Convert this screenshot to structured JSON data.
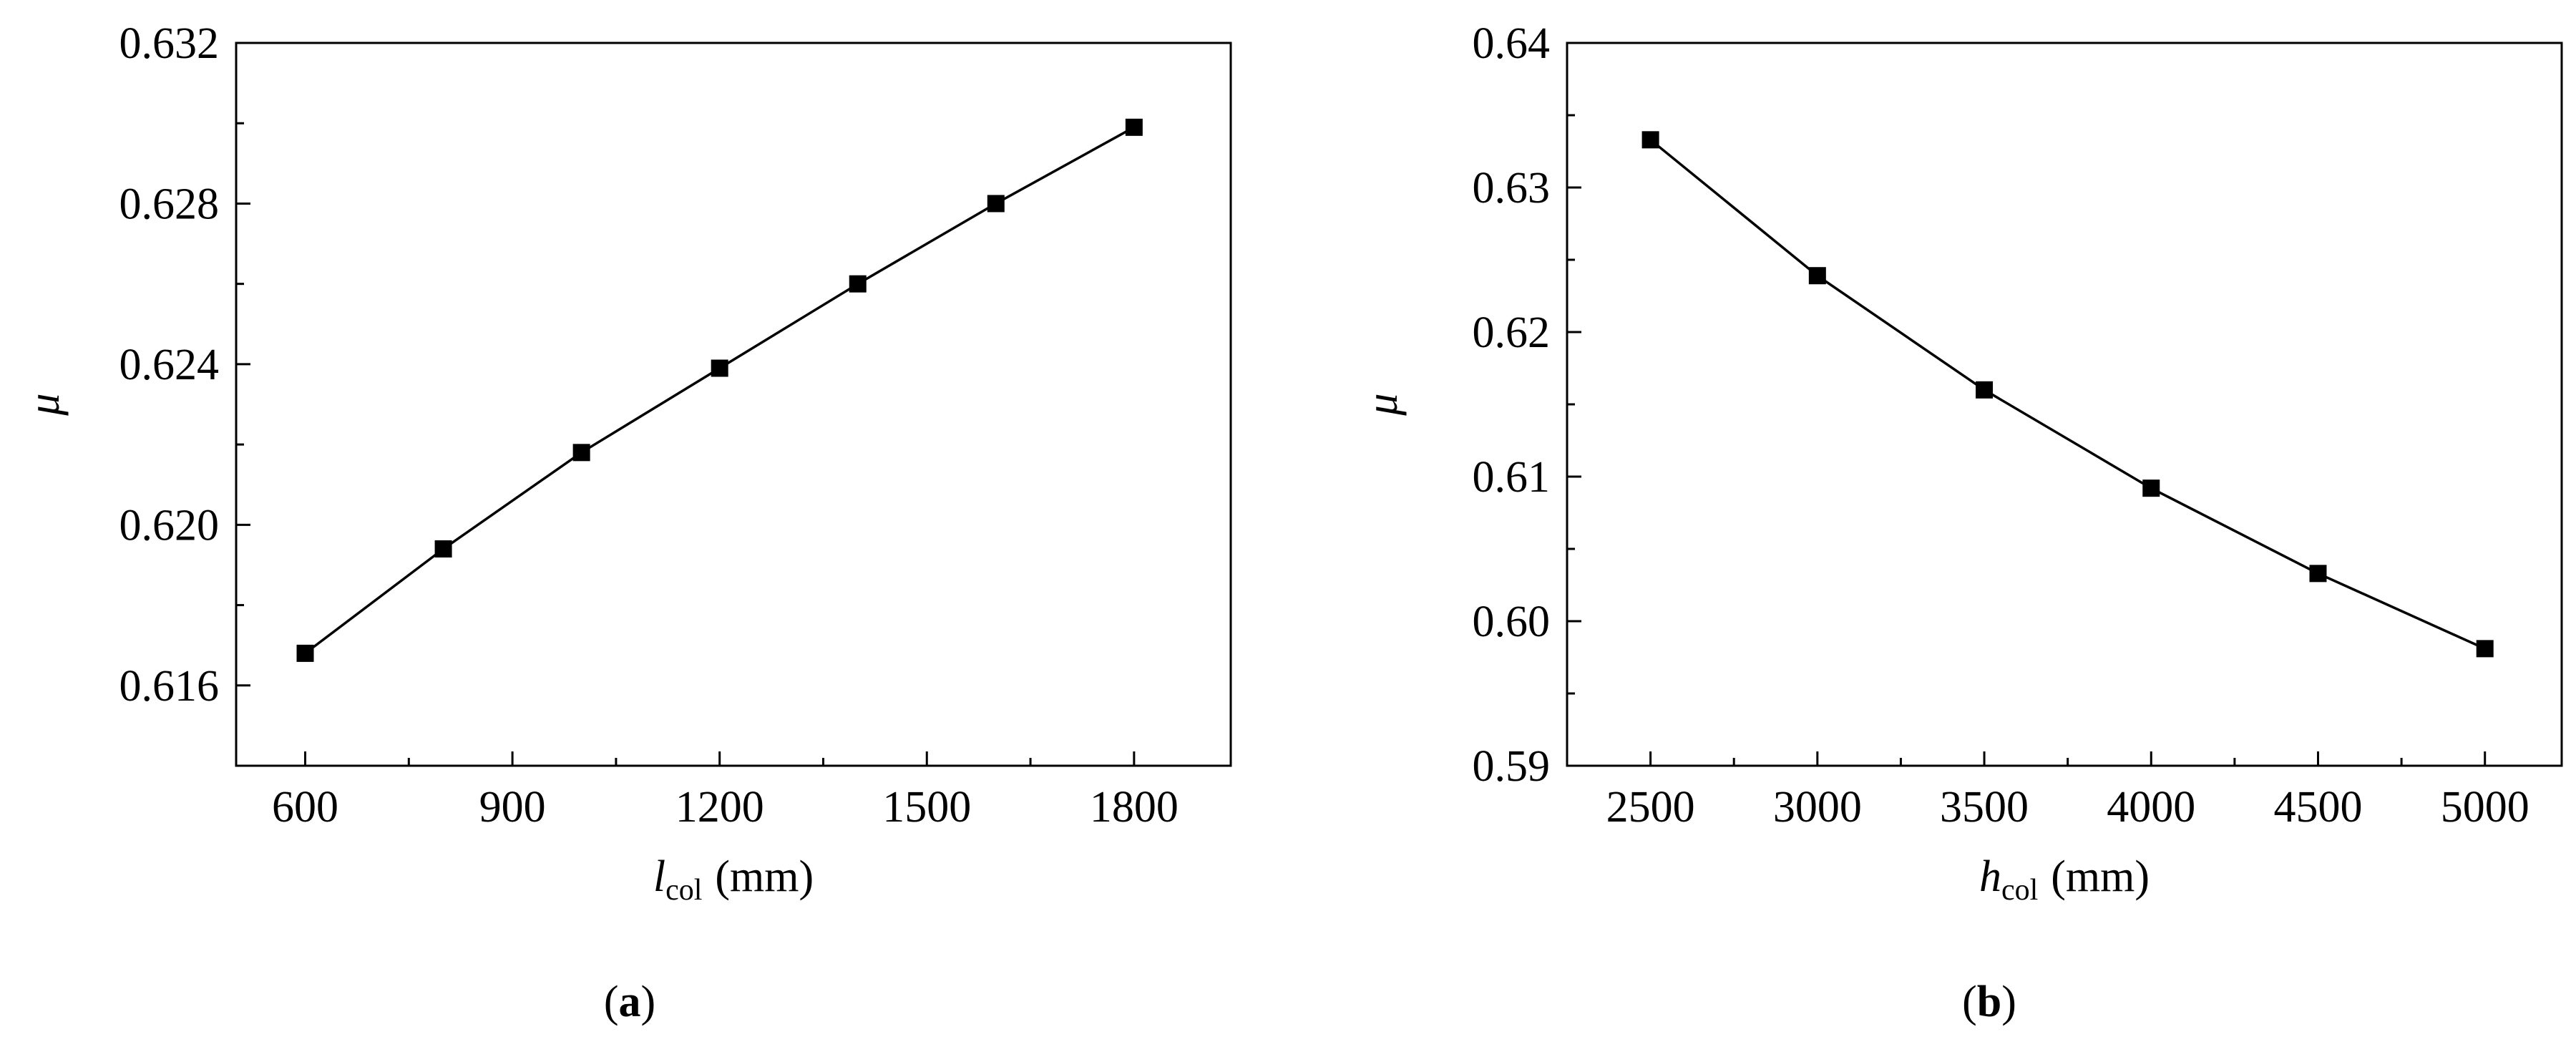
{
  "chart_data": [
    {
      "type": "line",
      "caption": {
        "open": "(",
        "letter": "a",
        "close": ")"
      },
      "xlabel": {
        "symbol": "l",
        "subscript": "col",
        "unit": "(mm)"
      },
      "ylabel": "μ",
      "xlim": [
        500,
        1940
      ],
      "ylim": [
        0.614,
        0.632
      ],
      "xticks": [
        600,
        900,
        1200,
        1500,
        1800
      ],
      "xtick_labels": [
        "600",
        "900",
        "1200",
        "1500",
        "1800"
      ],
      "xminor": [
        750,
        1050,
        1350,
        1650
      ],
      "yticks": [
        0.616,
        0.62,
        0.624,
        0.628,
        0.632
      ],
      "ytick_labels": [
        "0.616",
        "0.620",
        "0.624",
        "0.628",
        "0.632"
      ],
      "yminor": [
        0.618,
        0.622,
        0.626,
        0.63
      ],
      "x": [
        600,
        800,
        1000,
        1200,
        1400,
        1600,
        1800
      ],
      "y": [
        0.6168,
        0.6194,
        0.6218,
        0.6239,
        0.626,
        0.628,
        0.6299
      ],
      "marker": "square",
      "grid": false
    },
    {
      "type": "line",
      "caption": {
        "open": "(",
        "letter": "b",
        "close": ")"
      },
      "xlabel": {
        "symbol": "h",
        "subscript": "col",
        "unit": "(mm)"
      },
      "ylabel": "μ",
      "xlim": [
        2250,
        5230
      ],
      "ylim": [
        0.59,
        0.64
      ],
      "xticks": [
        2500,
        3000,
        3500,
        4000,
        4500,
        5000
      ],
      "xtick_labels": [
        "2500",
        "3000",
        "3500",
        "4000",
        "4500",
        "5000"
      ],
      "xminor": [
        2750,
        3250,
        3750,
        4250,
        4750
      ],
      "yticks": [
        0.59,
        0.6,
        0.61,
        0.62,
        0.63,
        0.64
      ],
      "ytick_labels": [
        "0.59",
        "0.60",
        "0.61",
        "0.62",
        "0.63",
        "0.64"
      ],
      "yminor": [
        0.595,
        0.605,
        0.615,
        0.625,
        0.635
      ],
      "x": [
        2500,
        3000,
        3500,
        4000,
        4500,
        5000
      ],
      "y": [
        0.6333,
        0.6239,
        0.616,
        0.6092,
        0.6033,
        0.5981
      ],
      "marker": "square",
      "grid": false
    }
  ]
}
